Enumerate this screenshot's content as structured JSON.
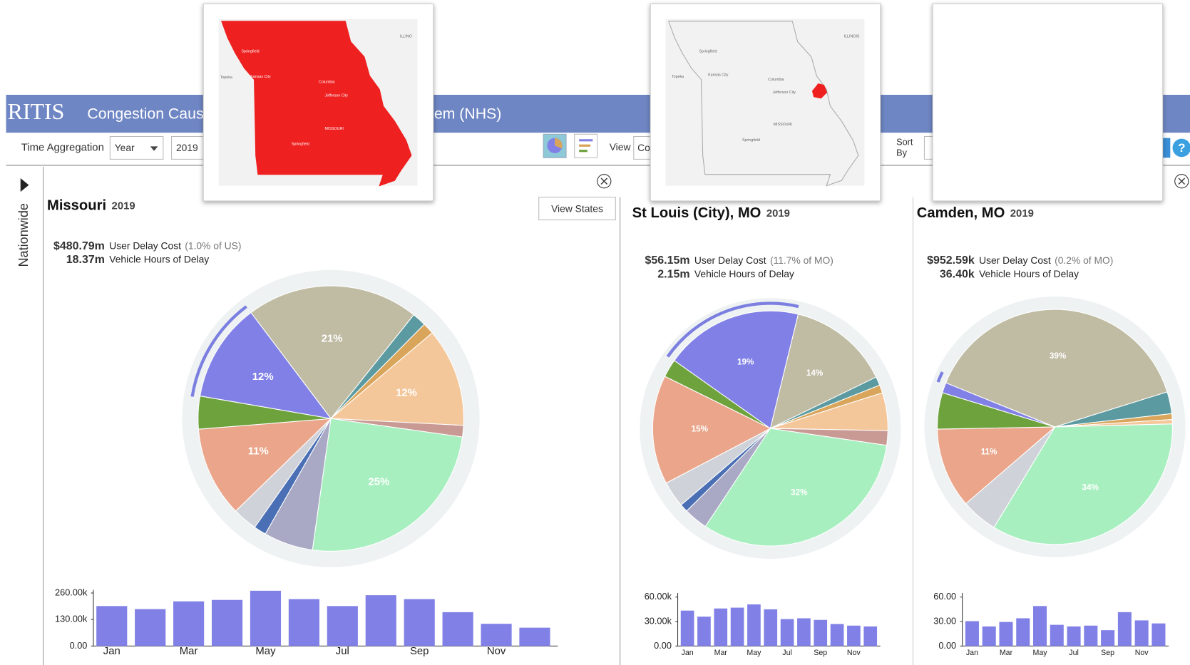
{
  "header": {
    "logo": "RITIS",
    "title_left": "Congestion Caus",
    "title_right": "em (NHS)"
  },
  "toolbar": {
    "time_aggregation_label": "Time Aggregation",
    "aggregation": "Year",
    "year": "2019",
    "view_label": "View",
    "view": "Co",
    "sort_label_1": "Sort",
    "sort_label_2": "By",
    "help": "?"
  },
  "sidebar": {
    "label": "Nationwide"
  },
  "panels": [
    {
      "name": "Missouri",
      "year": "2019",
      "button": "View States",
      "cost": "$480.79m",
      "cost_label": "User Delay Cost",
      "cost_share": "(1.0% of US)",
      "hours": "18.37m",
      "hours_label": "Vehicle Hours of Delay",
      "pie": {
        "type": "pie",
        "values": [
          21,
          1.7,
          1.4,
          12,
          1.4,
          25,
          6,
          1.5,
          3,
          11,
          4,
          12
        ],
        "value_labels": [
          "21%",
          null,
          null,
          "12%",
          null,
          "25%",
          null,
          null,
          null,
          "11%",
          null,
          "12%"
        ],
        "colors": [
          "#c0bba3",
          "#5b9aa0",
          "#d9a55b",
          "#f4c79b",
          "#c99a94",
          "#a8efc0",
          "#a9a9c6",
          "#4a6fb5",
          "#cfd3d9",
          "#eaa58a",
          "#6ea23c",
          "#8080e6"
        ]
      },
      "bars": {
        "type": "bar",
        "color": "#8080e6",
        "categories": [
          "Jan",
          null,
          "Mar",
          null,
          "May",
          null,
          "Jul",
          null,
          "Sep",
          null,
          "Nov",
          null
        ],
        "values": [
          196000,
          181000,
          219000,
          226000,
          271000,
          230000,
          196000,
          249000,
          230000,
          166000,
          109000,
          90000
        ],
        "ylim": [
          0,
          275000
        ],
        "yticks": [
          {
            "value": 0,
            "label": "0.00"
          },
          {
            "value": 130000,
            "label": "130.00k"
          },
          {
            "value": 260000,
            "label": "260.00k"
          }
        ]
      }
    },
    {
      "name": "St Louis (City), MO",
      "year": "2019",
      "cost": "$56.15m",
      "cost_label": "User Delay Cost",
      "cost_share": "(11.7% of MO)",
      "hours": "2.15m",
      "hours_label": "Vehicle Hours of Delay",
      "pie": {
        "type": "pie",
        "values": [
          14,
          1.2,
          1.1,
          5.2,
          2,
          32,
          3.3,
          1.1,
          3.6,
          15,
          2.5,
          19
        ],
        "value_labels": [
          "14%",
          null,
          null,
          null,
          null,
          "32%",
          null,
          null,
          null,
          "15%",
          null,
          "19%"
        ],
        "colors": [
          "#c0bba3",
          "#5b9aa0",
          "#d9a55b",
          "#f4c79b",
          "#c99a94",
          "#a8efc0",
          "#a9a9c6",
          "#4a6fb5",
          "#cfd3d9",
          "#eaa58a",
          "#6ea23c",
          "#8080e6"
        ]
      },
      "bars": {
        "type": "bar",
        "color": "#8080e6",
        "categories": [
          "Jan",
          null,
          "Mar",
          null,
          "May",
          null,
          "Jul",
          null,
          "Sep",
          null,
          "Nov",
          null
        ],
        "values": [
          43400,
          36000,
          46000,
          47000,
          51000,
          45000,
          33000,
          34000,
          32000,
          27000,
          25000,
          24000
        ],
        "ylim": [
          0,
          65000
        ],
        "yticks": [
          {
            "value": 0,
            "label": "0.00"
          },
          {
            "value": 30000,
            "label": "30.00k"
          },
          {
            "value": 60000,
            "label": "60.00k"
          }
        ]
      }
    },
    {
      "name": "Camden, MO",
      "year": "2019",
      "cost": "$952.59k",
      "cost_label": "User Delay Cost",
      "cost_share": "(0.2% of MO)",
      "hours": "36.40k",
      "hours_label": "Vehicle Hours of Delay",
      "pie": {
        "type": "pie",
        "values": [
          39,
          3,
          0.8,
          0.6,
          34,
          5,
          11,
          5,
          1.4
        ],
        "value_labels": [
          "39%",
          null,
          null,
          null,
          "34%",
          null,
          "11%",
          null,
          null
        ],
        "colors": [
          "#c0bba3",
          "#5b9aa0",
          "#d9a55b",
          "#f4c79b",
          "#a8efc0",
          "#cfd3d9",
          "#eaa58a",
          "#6ea23c",
          "#8080e6"
        ]
      },
      "bars": {
        "type": "bar",
        "color": "#8080e6",
        "categories": [
          "Jan",
          null,
          "Mar",
          null,
          "May",
          null,
          "Jul",
          null,
          "Sep",
          null,
          "Nov",
          null
        ],
        "values": [
          30.5,
          24,
          29.5,
          34,
          49,
          26,
          24,
          25,
          19.4,
          41.5,
          31.4,
          27.7
        ],
        "ylim": [
          0,
          65
        ],
        "yticks": [
          {
            "value": 0,
            "label": "0.00"
          },
          {
            "value": 30,
            "label": "30.00"
          },
          {
            "value": 60,
            "label": "60.00"
          }
        ]
      }
    }
  ],
  "maps": [
    {
      "labels": [
        "ILLINO",
        "Springfield",
        "Kansas City",
        "Topeka",
        "Columbia",
        "Jefferson City",
        "MISSOURI",
        "Springfield"
      ]
    },
    {
      "labels": [
        "ILLINOIS",
        "Springfield",
        "Kansas City",
        "Topeka",
        "Columbia",
        "Jefferson City",
        "MISSOURI",
        "Springfield"
      ]
    },
    {
      "labels": []
    }
  ]
}
